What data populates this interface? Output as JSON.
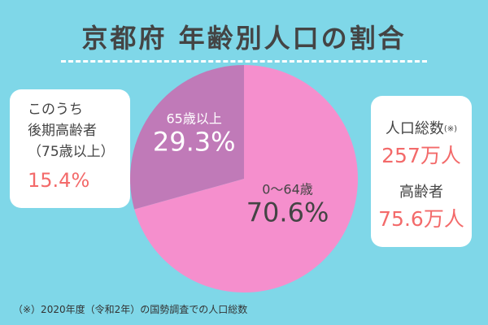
{
  "title": "京都府 年齢別人口の割合",
  "chart_data": {
    "type": "pie",
    "categories": [
      "0〜64歳",
      "65歳以上"
    ],
    "values": [
      70.6,
      29.3
    ],
    "value_labels": [
      "70.6%",
      "29.3%"
    ],
    "colors": [
      "#f58fcd",
      "#c07ab8"
    ]
  },
  "callout_left": {
    "line1": "このうち",
    "line2": "後期高齢者",
    "line3": "（75歳以上）",
    "value": "15.4%"
  },
  "callout_right": {
    "population_label": "人口総数",
    "population_note": "(※)",
    "population_value": "257万人",
    "elderly_label": "高齢者",
    "elderly_value": "75.6万人"
  },
  "footnote": "（※）2020年度（令和2年）の国勢調査での人口総数"
}
